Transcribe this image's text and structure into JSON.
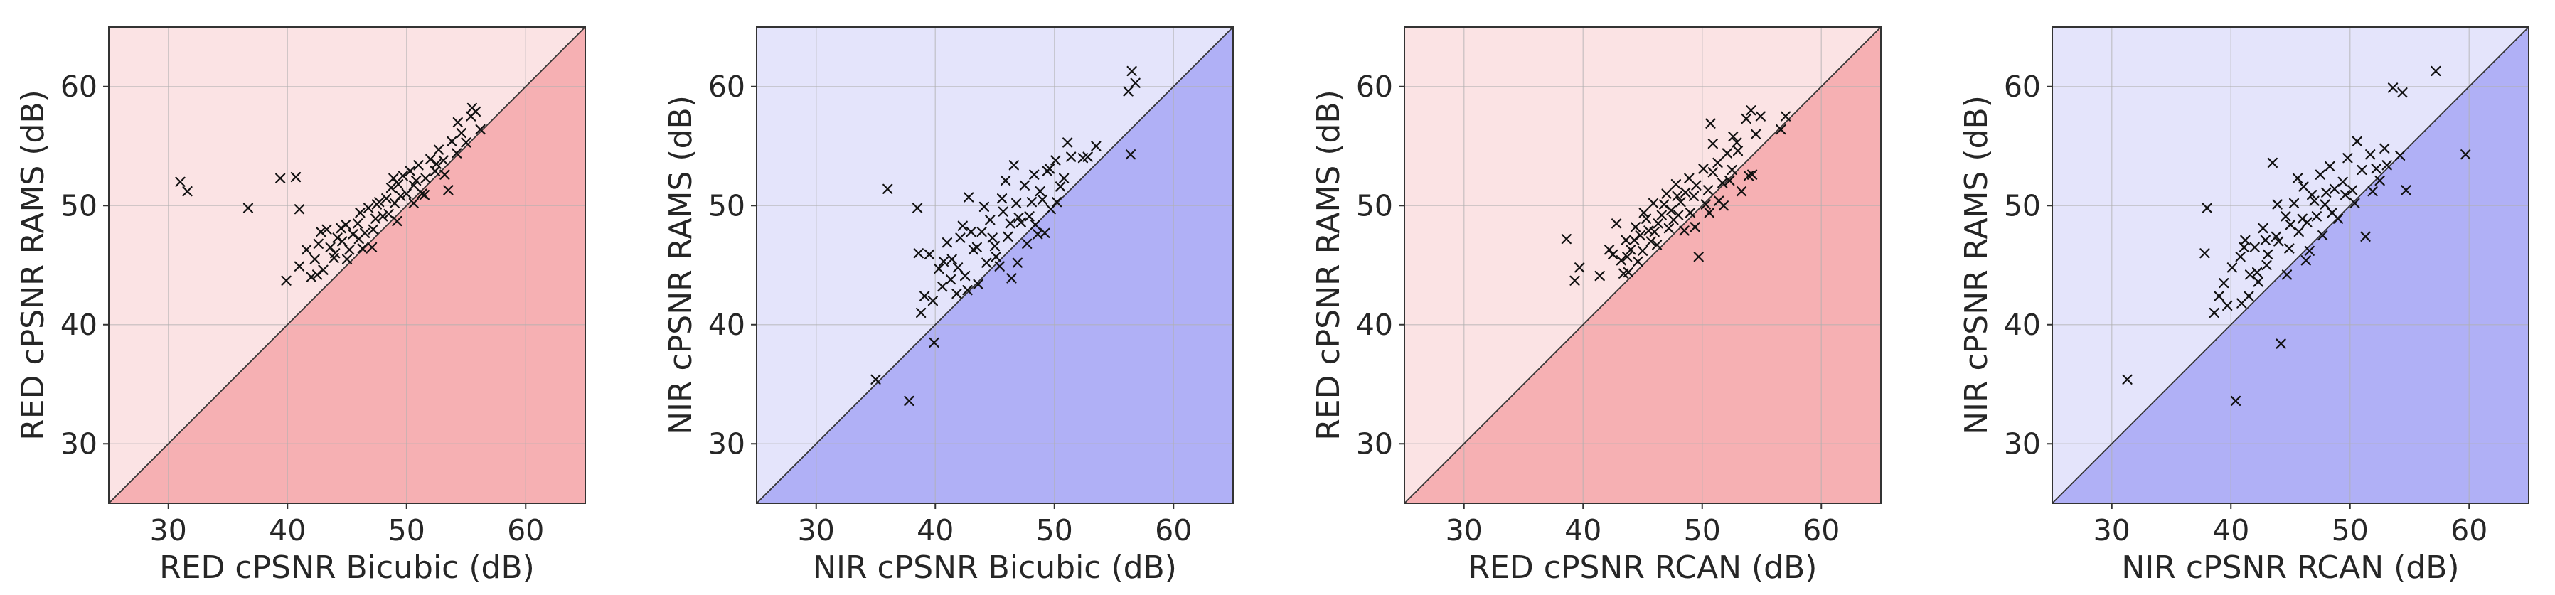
{
  "chart_data": [
    {
      "type": "scatter",
      "xlabel": "RED cPSNR Bicubic (dB)",
      "ylabel": "RED cPSNR RAMS (dB)",
      "xlim": [
        25,
        65
      ],
      "ylim": [
        25,
        65
      ],
      "xticks": [
        30,
        40,
        50,
        60
      ],
      "yticks": [
        30,
        40,
        50,
        60
      ],
      "colors": {
        "upper": "#fbe3e4",
        "lower": "#f6b0b3"
      },
      "points": [
        [
          31,
          52
        ],
        [
          31.6,
          51.2
        ],
        [
          36.7,
          49.8
        ],
        [
          39.4,
          52.3
        ],
        [
          40.7,
          52.4
        ],
        [
          41,
          49.7
        ],
        [
          39.9,
          43.7
        ],
        [
          41,
          44.9
        ],
        [
          42,
          44
        ],
        [
          42.3,
          45.5
        ],
        [
          42.6,
          46.8
        ],
        [
          42.8,
          47.8
        ],
        [
          43.3,
          48
        ],
        [
          43.6,
          46.5
        ],
        [
          43.9,
          45.6
        ],
        [
          44.2,
          47.3
        ],
        [
          44.6,
          47
        ],
        [
          44.9,
          48.4
        ],
        [
          45.2,
          46.3
        ],
        [
          45.5,
          47.6
        ],
        [
          45.9,
          48.5
        ],
        [
          46.1,
          49.4
        ],
        [
          46.5,
          47.7
        ],
        [
          46.8,
          49.8
        ],
        [
          47.1,
          46.5
        ],
        [
          47.4,
          48.9
        ],
        [
          47.7,
          50.3
        ],
        [
          48,
          49.1
        ],
        [
          48.3,
          50.6
        ],
        [
          48.7,
          51.5
        ],
        [
          49,
          50.2
        ],
        [
          49.3,
          51.8
        ],
        [
          49.7,
          52.5
        ],
        [
          50,
          51
        ],
        [
          50.3,
          52.9
        ],
        [
          50.6,
          51.7
        ],
        [
          51,
          53.4
        ],
        [
          51.3,
          51
        ],
        [
          51.6,
          52.3
        ],
        [
          52,
          53.9
        ],
        [
          52.4,
          52.9
        ],
        [
          52.7,
          54.7
        ],
        [
          53.1,
          53.8
        ],
        [
          53.5,
          51.3
        ],
        [
          53.8,
          55.4
        ],
        [
          54.2,
          54.4
        ],
        [
          54.6,
          56.1
        ],
        [
          55,
          55.3
        ],
        [
          55.4,
          57.5
        ],
        [
          55.8,
          57.9
        ],
        [
          56.2,
          56.4
        ],
        [
          55.5,
          58.2
        ],
        [
          46,
          47.2
        ],
        [
          47.5,
          50.1
        ],
        [
          48.5,
          49.3
        ],
        [
          49.5,
          50.8
        ],
        [
          44,
          46
        ],
        [
          43,
          44.6
        ],
        [
          46.3,
          46.4
        ],
        [
          45,
          45.5
        ],
        [
          50.8,
          52.1
        ],
        [
          51.5,
          50.9
        ],
        [
          48.9,
          52.3
        ],
        [
          44.5,
          48.1
        ],
        [
          47.2,
          48
        ],
        [
          52.5,
          53.5
        ],
        [
          53.2,
          52.6
        ],
        [
          54.3,
          57
        ],
        [
          42.5,
          44.2
        ],
        [
          41.6,
          46.3
        ],
        [
          50.6,
          50.2
        ],
        [
          49.2,
          48.7
        ]
      ]
    },
    {
      "type": "scatter",
      "xlabel": "NIR cPSNR Bicubic (dB)",
      "ylabel": "NIR cPSNR RAMS (dB)",
      "xlim": [
        25,
        65
      ],
      "ylim": [
        25,
        65
      ],
      "xticks": [
        30,
        40,
        50,
        60
      ],
      "yticks": [
        30,
        40,
        50,
        60
      ],
      "colors": {
        "upper": "#e4e4fb",
        "lower": "#b0b0f6"
      },
      "points": [
        [
          35,
          35.4
        ],
        [
          36,
          51.4
        ],
        [
          37.8,
          33.6
        ],
        [
          38.5,
          49.8
        ],
        [
          38.8,
          41
        ],
        [
          39.1,
          42.4
        ],
        [
          39.5,
          45.9
        ],
        [
          39.9,
          38.5
        ],
        [
          40.3,
          44.7
        ],
        [
          40.6,
          43.2
        ],
        [
          41,
          46.9
        ],
        [
          41.4,
          45.5
        ],
        [
          41.8,
          42.6
        ],
        [
          42.1,
          47.3
        ],
        [
          42.5,
          44.1
        ],
        [
          42.8,
          50.7
        ],
        [
          43.2,
          46.3
        ],
        [
          43.6,
          43.4
        ],
        [
          43.9,
          47.8
        ],
        [
          44.3,
          45.2
        ],
        [
          44.6,
          48.8
        ],
        [
          45,
          46.6
        ],
        [
          45.4,
          44.9
        ],
        [
          45.7,
          49.5
        ],
        [
          46.1,
          47.4
        ],
        [
          46.4,
          43.9
        ],
        [
          46.8,
          50.2
        ],
        [
          47.2,
          48.6
        ],
        [
          47.5,
          51.7
        ],
        [
          47.9,
          49.1
        ],
        [
          48.3,
          52.6
        ],
        [
          48.6,
          47.6
        ],
        [
          49,
          50.5
        ],
        [
          49.4,
          52.9
        ],
        [
          49.7,
          49.7
        ],
        [
          50.1,
          53.8
        ],
        [
          50.5,
          51.6
        ],
        [
          51.1,
          55.3
        ],
        [
          52.4,
          54
        ],
        [
          53.5,
          55
        ],
        [
          56.2,
          59.6
        ],
        [
          56.5,
          61.3
        ],
        [
          56.8,
          60.3
        ],
        [
          56.4,
          54.3
        ],
        [
          43.5,
          46.5
        ],
        [
          44.8,
          47.3
        ],
        [
          46.3,
          48.5
        ],
        [
          47,
          49
        ],
        [
          48.1,
          50.3
        ],
        [
          45.1,
          45.7
        ],
        [
          41.9,
          44.8
        ],
        [
          40.7,
          45.3
        ],
        [
          43,
          47.8
        ],
        [
          49.2,
          47.7
        ],
        [
          39.8,
          42
        ],
        [
          42.7,
          42.9
        ],
        [
          45.9,
          52.1
        ],
        [
          46.6,
          53.4
        ],
        [
          48.8,
          51.2
        ],
        [
          50.2,
          50.3
        ],
        [
          51.4,
          54.1
        ],
        [
          44.1,
          49.9
        ],
        [
          42.3,
          48.3
        ],
        [
          47.7,
          46.8
        ],
        [
          46.9,
          45.2
        ],
        [
          48.4,
          48.4
        ],
        [
          50.8,
          52.3
        ],
        [
          45.6,
          50.6
        ],
        [
          41.3,
          43.8
        ],
        [
          38.6,
          46
        ],
        [
          52.8,
          54.1
        ],
        [
          49.6,
          53.1
        ]
      ]
    },
    {
      "type": "scatter",
      "xlabel": "RED cPSNR RCAN (dB)",
      "ylabel": "RED cPSNR RAMS (dB)",
      "xlim": [
        25,
        65
      ],
      "ylim": [
        25,
        65
      ],
      "xticks": [
        30,
        40,
        50,
        60
      ],
      "yticks": [
        30,
        40,
        50,
        60
      ],
      "colors": {
        "upper": "#fbe3e4",
        "lower": "#f6b0b3"
      },
      "points": [
        [
          38.6,
          47.2
        ],
        [
          39.3,
          43.7
        ],
        [
          39.7,
          44.8
        ],
        [
          41.4,
          44.1
        ],
        [
          42.5,
          45.9
        ],
        [
          42.8,
          48.5
        ],
        [
          43.2,
          45.4
        ],
        [
          43.6,
          47.1
        ],
        [
          44,
          46.3
        ],
        [
          44.4,
          48.2
        ],
        [
          44.8,
          47.5
        ],
        [
          45.1,
          49.4
        ],
        [
          45.5,
          47.9
        ],
        [
          45.9,
          50.2
        ],
        [
          46.3,
          48.5
        ],
        [
          46.6,
          49.2
        ],
        [
          47,
          51
        ],
        [
          47.4,
          49.6
        ],
        [
          47.8,
          51.8
        ],
        [
          48.2,
          50.3
        ],
        [
          48.5,
          47.9
        ],
        [
          48.9,
          52.3
        ],
        [
          49.3,
          50.8
        ],
        [
          49.7,
          45.7
        ],
        [
          50.1,
          53.1
        ],
        [
          50.5,
          51.3
        ],
        [
          50.7,
          56.9
        ],
        [
          50.9,
          52.8
        ],
        [
          51.3,
          53.6
        ],
        [
          51.7,
          51.9
        ],
        [
          52.1,
          54.4
        ],
        [
          52.5,
          53
        ],
        [
          52.9,
          55.3
        ],
        [
          53.3,
          51.2
        ],
        [
          53.7,
          57.3
        ],
        [
          54.1,
          58
        ],
        [
          54.5,
          56
        ],
        [
          54.9,
          57.5
        ],
        [
          56.6,
          56.4
        ],
        [
          57,
          57.5
        ],
        [
          45,
          46.2
        ],
        [
          46,
          47.8
        ],
        [
          47.2,
          48.1
        ],
        [
          48,
          49.2
        ],
        [
          49,
          49.4
        ],
        [
          43.8,
          44.4
        ],
        [
          44.6,
          45.3
        ],
        [
          46.8,
          50.1
        ],
        [
          47.6,
          48.8
        ],
        [
          49.5,
          51.7
        ],
        [
          50.3,
          50.1
        ],
        [
          51.4,
          50.4
        ],
        [
          52.3,
          52.1
        ],
        [
          53,
          54.6
        ],
        [
          53.9,
          52.5
        ],
        [
          54.2,
          52.6
        ],
        [
          42.2,
          46.3
        ],
        [
          43.4,
          44.3
        ],
        [
          45.7,
          47
        ],
        [
          48.6,
          51.1
        ],
        [
          46.2,
          46.7
        ],
        [
          44.3,
          47.1
        ],
        [
          49.4,
          48.2
        ],
        [
          50.9,
          55.2
        ],
        [
          51.8,
          50
        ],
        [
          52.6,
          55.8
        ],
        [
          47.9,
          50.8
        ],
        [
          45.3,
          48.9
        ],
        [
          43.7,
          45.7
        ],
        [
          50.6,
          49.4
        ]
      ]
    },
    {
      "type": "scatter",
      "xlabel": "NIR cPSNR RCAN (dB)",
      "ylabel": "NIR cPSNR RAMS (dB)",
      "xlim": [
        25,
        65
      ],
      "ylim": [
        25,
        65
      ],
      "xticks": [
        30,
        40,
        50,
        60
      ],
      "yticks": [
        30,
        40,
        50,
        60
      ],
      "colors": {
        "upper": "#e4e4fb",
        "lower": "#b0b0f6"
      },
      "points": [
        [
          31.3,
          35.4
        ],
        [
          37.8,
          46
        ],
        [
          38,
          49.8
        ],
        [
          38.6,
          41
        ],
        [
          39,
          42.4
        ],
        [
          39.4,
          43.5
        ],
        [
          40.1,
          44.8
        ],
        [
          40.4,
          33.6
        ],
        [
          40.8,
          45.7
        ],
        [
          41.2,
          47.1
        ],
        [
          41.6,
          44.2
        ],
        [
          42,
          46.5
        ],
        [
          42.3,
          43.6
        ],
        [
          42.7,
          48.1
        ],
        [
          43.1,
          45.9
        ],
        [
          43.5,
          53.6
        ],
        [
          43.8,
          47.4
        ],
        [
          44.2,
          38.4
        ],
        [
          44.6,
          49.1
        ],
        [
          44.9,
          46.4
        ],
        [
          45.3,
          50.2
        ],
        [
          45.7,
          47.8
        ],
        [
          46.1,
          51.6
        ],
        [
          46.4,
          48.6
        ],
        [
          46.8,
          50.9
        ],
        [
          47.2,
          49.1
        ],
        [
          47.5,
          52.6
        ],
        [
          47.9,
          50.1
        ],
        [
          48.3,
          53.3
        ],
        [
          48.7,
          51.4
        ],
        [
          49,
          48.9
        ],
        [
          49.4,
          52
        ],
        [
          49.8,
          54
        ],
        [
          50.2,
          51.3
        ],
        [
          50.6,
          55.4
        ],
        [
          51,
          53
        ],
        [
          51.3,
          47.4
        ],
        [
          51.7,
          54.3
        ],
        [
          52.2,
          53.1
        ],
        [
          52.9,
          54.8
        ],
        [
          53.6,
          59.9
        ],
        [
          54.2,
          54.2
        ],
        [
          54.4,
          59.5
        ],
        [
          54.7,
          51.3
        ],
        [
          57.2,
          61.3
        ],
        [
          59.7,
          54.3
        ],
        [
          44,
          47
        ],
        [
          45,
          48.4
        ],
        [
          46,
          48.9
        ],
        [
          47,
          50.4
        ],
        [
          48,
          51.1
        ],
        [
          43,
          45
        ],
        [
          42.2,
          44.4
        ],
        [
          41.5,
          42.4
        ],
        [
          40.9,
          41.8
        ],
        [
          44.7,
          44.2
        ],
        [
          46.6,
          46.2
        ],
        [
          48.5,
          49.4
        ],
        [
          50.4,
          50.2
        ],
        [
          52.5,
          52.1
        ],
        [
          39.7,
          41.6
        ],
        [
          43.9,
          50.1
        ],
        [
          45.6,
          52.3
        ],
        [
          42.9,
          47.1
        ],
        [
          47.7,
          47.5
        ],
        [
          49.6,
          50.9
        ],
        [
          51.9,
          51.2
        ],
        [
          46.3,
          45.4
        ],
        [
          41.1,
          46.5
        ],
        [
          53.1,
          53.4
        ]
      ]
    }
  ]
}
